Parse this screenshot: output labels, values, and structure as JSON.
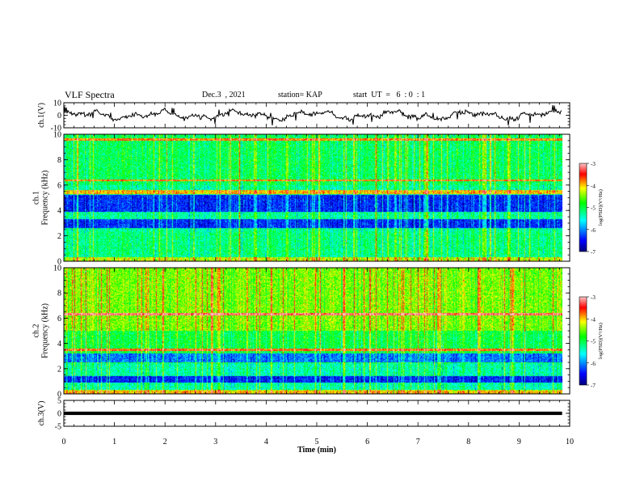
{
  "header": {
    "title": "VLF Spectra",
    "date": "Dec.3  , 2021",
    "station": "station= KAP",
    "start": "start  UT  =   6  : 0  : 1"
  },
  "colorbar": {
    "label": "log(PSD)(V²/Hz)",
    "ticks": [
      "-3",
      "-4",
      "-5",
      "-6",
      "-7"
    ]
  },
  "chart_data": [
    {
      "type": "line",
      "name": "ch1-voltage",
      "ylabel": "ch.1(V)",
      "ylim": [
        -10,
        10
      ],
      "ytick_labels": [
        "10",
        "0",
        "-10"
      ],
      "xlim": [
        0,
        10
      ],
      "trace_end_min": 9.85,
      "approx_range": [
        -5,
        5
      ]
    },
    {
      "type": "heatmap",
      "name": "ch1-spectrogram",
      "ylabel": "ch.1\nFrequency (kHz)",
      "ylim": [
        0,
        10
      ],
      "ytick_labels": [
        "0",
        "2",
        "4",
        "6",
        "8",
        "10"
      ],
      "xlim": [
        0,
        10
      ],
      "data_end_min": 9.85,
      "zlim": [
        -7,
        -3
      ],
      "background_log_psd": -5.3,
      "quiet_bands_khz": [
        [
          2.6,
          3.3
        ],
        [
          3.9,
          5.2
        ]
      ],
      "intense_bands_khz": [
        [
          5.3,
          5.6
        ],
        [
          6.3,
          6.45
        ],
        [
          9.55,
          9.7
        ]
      ],
      "notes": "broadband vertical impulse streaks throughout"
    },
    {
      "type": "heatmap",
      "name": "ch2-spectrogram",
      "ylabel": "ch.2\nFrequency (kHz)",
      "ylim": [
        0,
        10
      ],
      "ytick_labels": [
        "0",
        "2",
        "4",
        "6",
        "8",
        "10"
      ],
      "xlim": [
        0,
        10
      ],
      "data_end_min": 9.85,
      "zlim": [
        -7,
        -3
      ],
      "background_log_psd": -4.8,
      "quiet_bands_khz": [
        [
          2.5,
          3.2
        ],
        [
          0.9,
          1.4
        ]
      ],
      "intense_bands_khz": [
        [
          6.2,
          6.4
        ],
        [
          3.4,
          3.6
        ]
      ],
      "notes": "strong broadband impulses, especially above 5 kHz"
    },
    {
      "type": "line",
      "name": "ch3-voltage",
      "ylabel": "ch.3(V)",
      "ylim": [
        -5,
        5
      ],
      "ytick_labels": [
        "5",
        "0",
        "-5"
      ],
      "xlim": [
        0,
        10
      ],
      "trace_end_min": 9.85,
      "level_v": 0,
      "band_thickness_v": 1.3
    }
  ],
  "xaxis": {
    "label": "Time  (min)",
    "ticks": [
      "0",
      "1",
      "2",
      "3",
      "4",
      "5",
      "6",
      "7",
      "8",
      "9",
      "10"
    ]
  },
  "colors": {
    "trace": "#000000",
    "colormap": [
      "#00007f",
      "#0000ff",
      "#00ffff",
      "#00ff00",
      "#ffff00",
      "#ff0000",
      "#ffc0c0"
    ]
  }
}
